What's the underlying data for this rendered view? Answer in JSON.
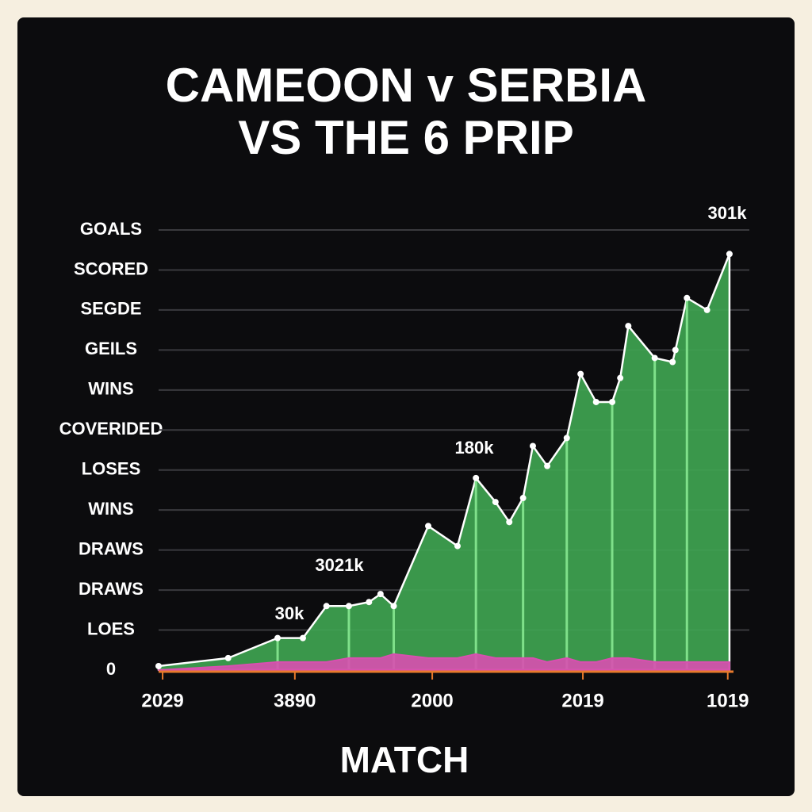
{
  "chart_data": {
    "type": "area",
    "title": [
      "CAMEOON v SERBIA",
      "VS THE 6 PRIP"
    ],
    "x_label": "MATCH",
    "x": [
      0,
      12.1,
      20.7,
      25.1,
      29.2,
      33.1,
      36.6,
      38.6,
      40.9,
      46.9,
      52,
      55.2,
      58.6,
      61,
      63.4,
      65.1,
      67.6,
      71,
      73.4,
      76.1,
      78.9,
      80.3,
      81.7,
      86.3,
      89.4,
      89.9,
      91.9,
      95.4,
      99.3
    ],
    "series": [
      {
        "color": "#3fa652",
        "values": [
          0.1,
          0.3,
          0.8,
          0.8,
          1.6,
          1.6,
          1.7,
          1.9,
          1.6,
          3.6,
          3.1,
          4.8,
          4.2,
          3.7,
          4.3,
          5.6,
          5.1,
          5.8,
          7.4,
          6.7,
          6.7,
          7.3,
          8.6,
          7.8,
          7.7,
          8,
          9.3,
          9,
          10.4
        ]
      },
      {
        "color": "#d94fb0",
        "values": [
          0,
          0.1,
          0.2,
          0.2,
          0.2,
          0.3,
          0.3,
          0.3,
          0.4,
          0.3,
          0.3,
          0.4,
          0.3,
          0.3,
          0.3,
          0.3,
          0.2,
          0.3,
          0.2,
          0.2,
          0.3,
          0.3,
          0.3,
          0.2,
          0.2,
          0.2,
          0.2,
          0.2,
          0.2
        ]
      }
    ],
    "xlim": [
      0,
      100
    ],
    "xticks": [
      {
        "value": 0.7,
        "label": "2029"
      },
      {
        "value": 23.7,
        "label": "3890"
      },
      {
        "value": 47.6,
        "label": "2000"
      },
      {
        "value": 73.8,
        "label": "2019"
      },
      {
        "value": 99,
        "label": "1019"
      }
    ],
    "ylim": [
      0,
      11
    ],
    "yticks": [
      0,
      {
        "value": 1,
        "label": "LOES"
      },
      {
        "value": 2,
        "label": "DRAWS"
      },
      {
        "value": 3,
        "label": "DRAWS"
      },
      {
        "value": 4,
        "label": "WINS"
      },
      {
        "value": 5,
        "label": "LOSES"
      },
      {
        "value": 6,
        "label": "COVERIDED"
      },
      {
        "value": 7,
        "label": "WINS"
      },
      {
        "value": 8,
        "label": "GEILS"
      },
      {
        "value": 9,
        "label": "SEGDE"
      },
      {
        "value": 10,
        "label": "SCORED"
      },
      {
        "value": 11,
        "label": "GOALS"
      }
    ],
    "annotations": [
      "301k",
      "180k",
      "3021k",
      "30k"
    ],
    "grid": true
  }
}
